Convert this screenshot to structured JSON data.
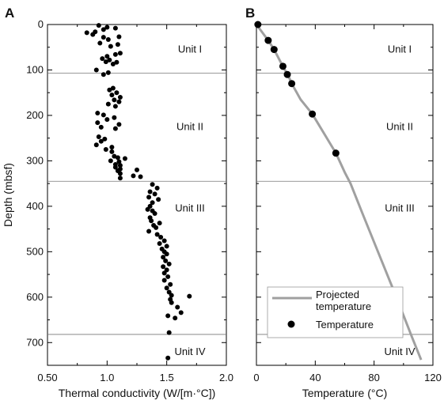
{
  "chart_data": [
    {
      "panel_label": "A",
      "type": "scatter",
      "xlabel": "Thermal conductivity (W/[m·°C])",
      "ylabel": "Depth (mbsf)",
      "xlim": [
        0.5,
        2.0
      ],
      "ylim": [
        0,
        750
      ],
      "y_inverted": true,
      "x_ticks": [
        "0.50",
        "1.0",
        "1.5",
        "2.0"
      ],
      "x_tick_values": [
        0.5,
        1.0,
        1.5,
        2.0
      ],
      "y_ticks": [
        "0",
        "100",
        "200",
        "300",
        "400",
        "500",
        "600",
        "700"
      ],
      "y_tick_values": [
        0,
        100,
        200,
        300,
        400,
        500,
        600,
        700
      ],
      "unit_boundaries": [
        107,
        345,
        682
      ],
      "units": [
        {
          "label": "Unit I",
          "depth": 55
        },
        {
          "label": "Unit II",
          "depth": 225
        },
        {
          "label": "Unit III",
          "depth": 405
        },
        {
          "label": "Unit IV",
          "depth": 720
        }
      ],
      "points": [
        [
          0.93,
          2
        ],
        [
          1.0,
          6
        ],
        [
          0.97,
          11
        ],
        [
          1.07,
          8
        ],
        [
          0.9,
          16
        ],
        [
          0.83,
          18
        ],
        [
          0.88,
          22
        ],
        [
          0.97,
          28
        ],
        [
          1.1,
          27
        ],
        [
          1.01,
          33
        ],
        [
          0.94,
          41
        ],
        [
          1.09,
          44
        ],
        [
          1.03,
          48
        ],
        [
          1.11,
          63
        ],
        [
          1.07,
          66
        ],
        [
          1.0,
          70
        ],
        [
          0.96,
          75
        ],
        [
          1.02,
          78
        ],
        [
          0.99,
          82
        ],
        [
          1.08,
          83
        ],
        [
          1.05,
          87
        ],
        [
          0.91,
          100
        ],
        [
          1.01,
          106
        ],
        [
          0.97,
          110
        ],
        [
          1.05,
          140
        ],
        [
          1.02,
          144
        ],
        [
          1.08,
          150
        ],
        [
          1.04,
          155
        ],
        [
          1.11,
          160
        ],
        [
          1.06,
          166
        ],
        [
          1.1,
          170
        ],
        [
          1.01,
          175
        ],
        [
          1.07,
          180
        ],
        [
          0.92,
          195
        ],
        [
          0.97,
          199
        ],
        [
          1.06,
          205
        ],
        [
          1.0,
          209
        ],
        [
          0.92,
          216
        ],
        [
          1.1,
          220
        ],
        [
          0.95,
          226
        ],
        [
          1.07,
          229
        ],
        [
          0.93,
          247
        ],
        [
          0.98,
          252
        ],
        [
          0.95,
          257
        ],
        [
          0.91,
          265
        ],
        [
          1.04,
          270
        ],
        [
          0.99,
          275
        ],
        [
          1.04,
          280
        ],
        [
          1.06,
          290
        ],
        [
          1.09,
          293
        ],
        [
          1.15,
          295
        ],
        [
          1.03,
          300
        ],
        [
          1.1,
          302
        ],
        [
          1.07,
          308
        ],
        [
          1.11,
          310
        ],
        [
          1.07,
          314
        ],
        [
          1.11,
          318
        ],
        [
          1.25,
          320
        ],
        [
          1.09,
          322
        ],
        [
          1.11,
          328
        ],
        [
          1.22,
          333
        ],
        [
          1.28,
          335
        ],
        [
          1.11,
          338
        ],
        [
          1.38,
          352
        ],
        [
          1.42,
          360
        ],
        [
          1.36,
          368
        ],
        [
          1.4,
          373
        ],
        [
          1.35,
          380
        ],
        [
          1.43,
          385
        ],
        [
          1.38,
          392
        ],
        [
          1.36,
          400
        ],
        [
          1.34,
          407
        ],
        [
          1.38,
          410
        ],
        [
          1.4,
          416
        ],
        [
          1.36,
          425
        ],
        [
          1.37,
          432
        ],
        [
          1.44,
          437
        ],
        [
          1.39,
          442
        ],
        [
          1.41,
          447
        ],
        [
          1.35,
          455
        ],
        [
          1.42,
          462
        ],
        [
          1.45,
          468
        ],
        [
          1.48,
          476
        ],
        [
          1.44,
          482
        ],
        [
          1.5,
          488
        ],
        [
          1.46,
          494
        ],
        [
          1.48,
          500
        ],
        [
          1.5,
          505
        ],
        [
          1.47,
          512
        ],
        [
          1.49,
          520
        ],
        [
          1.52,
          527
        ],
        [
          1.47,
          533
        ],
        [
          1.5,
          540
        ],
        [
          1.48,
          547
        ],
        [
          1.51,
          555
        ],
        [
          1.48,
          563
        ],
        [
          1.53,
          572
        ],
        [
          1.5,
          580
        ],
        [
          1.52,
          589
        ],
        [
          1.54,
          596
        ],
        [
          1.69,
          598
        ],
        [
          1.53,
          605
        ],
        [
          1.54,
          612
        ],
        [
          1.59,
          622
        ],
        [
          1.62,
          634
        ],
        [
          1.51,
          641
        ],
        [
          1.57,
          646
        ],
        [
          1.52,
          678
        ],
        [
          1.51,
          734
        ]
      ]
    },
    {
      "panel_label": "B",
      "type": "line+scatter",
      "xlabel": "Temperature (°C)",
      "ylabel": "",
      "xlim": [
        0,
        120
      ],
      "ylim": [
        0,
        750
      ],
      "y_inverted": true,
      "x_ticks": [
        "0",
        "40",
        "80",
        "120"
      ],
      "x_tick_values": [
        0,
        40,
        80,
        120
      ],
      "unit_boundaries": [
        107,
        345,
        682
      ],
      "units": [
        {
          "label": "Unit I",
          "depth": 55
        },
        {
          "label": "Unit II",
          "depth": 225
        },
        {
          "label": "Unit III",
          "depth": 405
        },
        {
          "label": "Unit IV",
          "depth": 720
        }
      ],
      "series": [
        {
          "name": "Projected temperature",
          "kind": "line",
          "color": "#a0a0a0",
          "points": [
            [
              0,
              0
            ],
            [
              8,
              35
            ],
            [
              12,
              55
            ],
            [
              18,
              92
            ],
            [
              22,
              115
            ],
            [
              24,
              130
            ],
            [
              30,
              165
            ],
            [
              38,
              197
            ],
            [
              46,
              240
            ],
            [
              54,
              283
            ],
            [
              60,
              325
            ],
            [
              64,
              350
            ],
            [
              72,
              415
            ],
            [
              82,
              495
            ],
            [
              92,
              575
            ],
            [
              100,
              640
            ],
            [
              106,
              690
            ],
            [
              112,
              738
            ]
          ]
        },
        {
          "name": "Temperature",
          "kind": "scatter",
          "color": "#000000",
          "points": [
            [
              1,
              0
            ],
            [
              8,
              35
            ],
            [
              12,
              55
            ],
            [
              18,
              92
            ],
            [
              21,
              110
            ],
            [
              24,
              130
            ],
            [
              38,
              197
            ],
            [
              54,
              283
            ]
          ]
        }
      ],
      "legend": {
        "placement": "lower-right",
        "entries": [
          {
            "label_lines": [
              "Projected",
              "temperature"
            ],
            "kind": "line",
            "color": "#a0a0a0"
          },
          {
            "label_lines": [
              "Temperature"
            ],
            "kind": "dot",
            "color": "#000000"
          }
        ]
      }
    }
  ]
}
